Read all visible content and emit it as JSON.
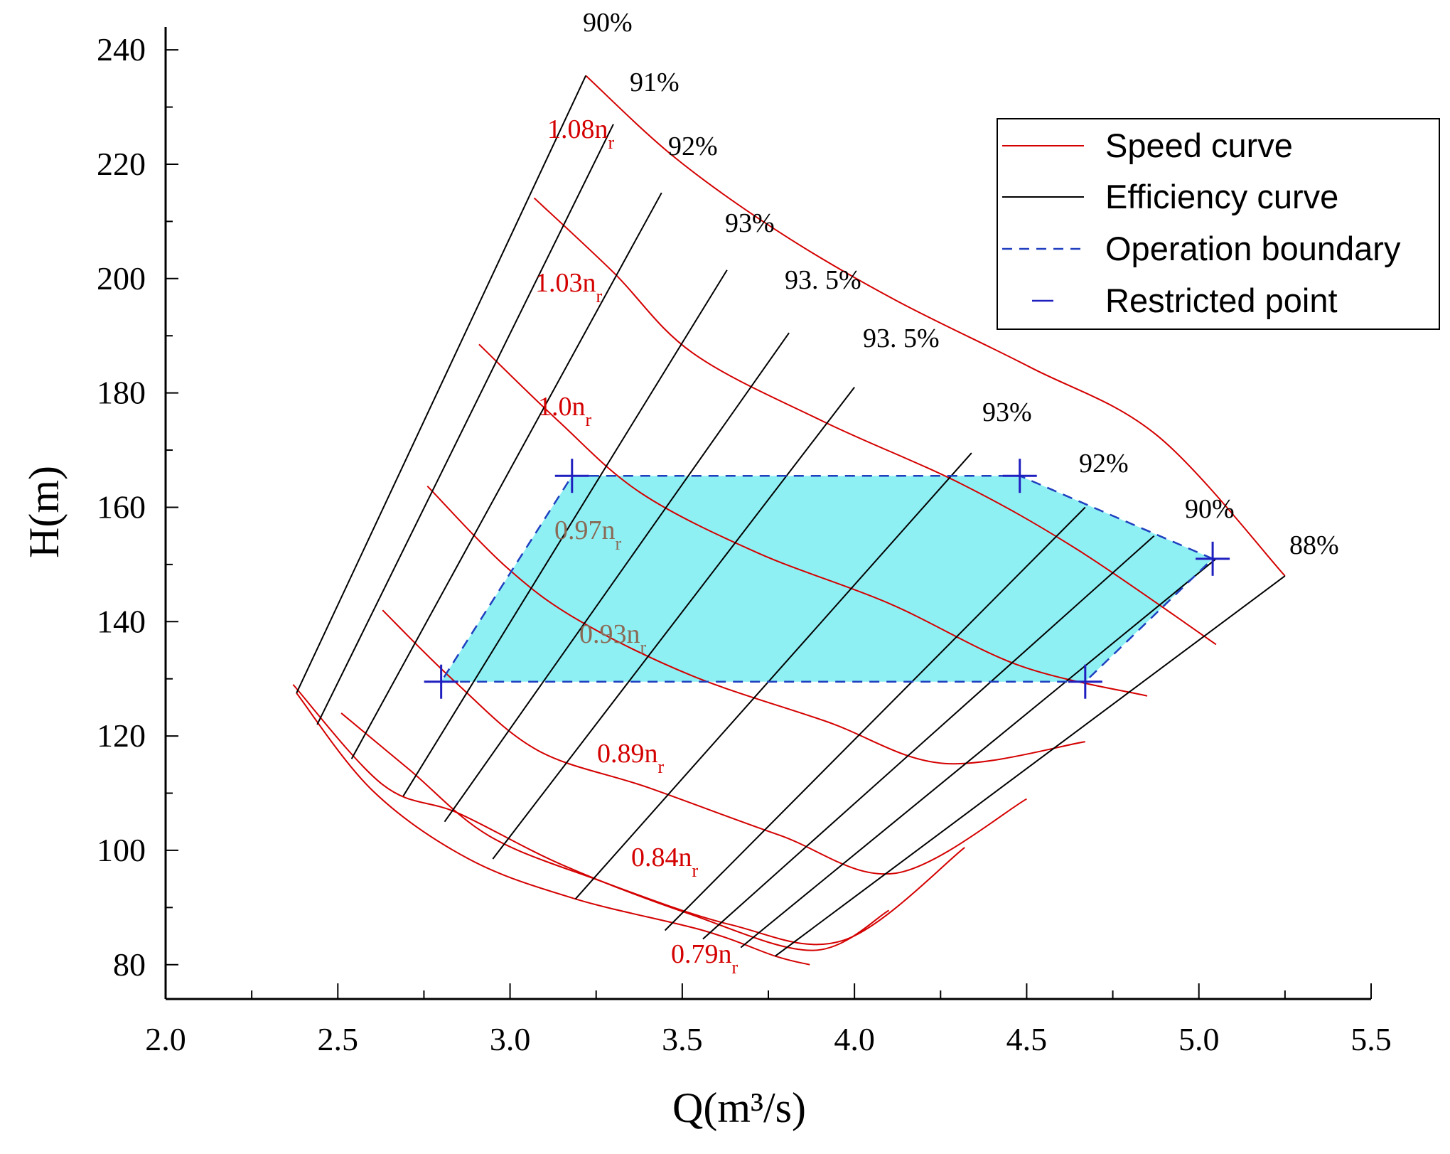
{
  "chart_data": {
    "type": "line",
    "title": "",
    "xlabel": "Q(m³/s)",
    "ylabel": "H(m)",
    "xlim": [
      2.0,
      5.5
    ],
    "ylim": [
      74,
      244
    ],
    "x_ticks": [
      "2.0",
      "2.5",
      "3.0",
      "3.5",
      "4.0",
      "4.5",
      "5.0",
      "5.5"
    ],
    "y_ticks": [
      "80",
      "100",
      "120",
      "140",
      "160",
      "180",
      "200",
      "220",
      "240"
    ],
    "legend": {
      "position": "top-right",
      "items": [
        {
          "label": "Speed curve",
          "style": "solid",
          "color": "#d40000"
        },
        {
          "label": "Efficiency curve",
          "style": "solid",
          "color": "#000000"
        },
        {
          "label": "Operation boundary",
          "style": "dashed",
          "color": "#1f3fbf"
        },
        {
          "label": "Restricted point",
          "style": "marker",
          "color": "#1f1fbf"
        }
      ]
    },
    "speed_curves": [
      {
        "label": "1.08n",
        "sub": "r",
        "ratio": 1.08,
        "points": [
          [
            3.22,
            235.5
          ],
          [
            3.48,
            221.1
          ],
          [
            3.79,
            207.8
          ],
          [
            4.12,
            196.2
          ],
          [
            4.51,
            184.5
          ],
          [
            4.88,
            172.5
          ],
          [
            5.25,
            148.0
          ]
        ]
      },
      {
        "label": "1.03n",
        "sub": "r",
        "ratio": 1.03,
        "points": [
          [
            3.07,
            214.1
          ],
          [
            3.3,
            201.1
          ],
          [
            3.53,
            187.0
          ],
          [
            3.91,
            175.0
          ],
          [
            4.31,
            164.1
          ],
          [
            4.65,
            152.5
          ],
          [
            5.05,
            136.0
          ]
        ]
      },
      {
        "label": "1.0n",
        "sub": "r",
        "ratio": 1.0,
        "points": [
          [
            2.91,
            188.5
          ],
          [
            3.14,
            175.1
          ],
          [
            3.38,
            162.5
          ],
          [
            3.72,
            152.0
          ],
          [
            4.1,
            143.2
          ],
          [
            4.48,
            132.3
          ],
          [
            4.85,
            127.0
          ]
        ]
      },
      {
        "label": "0.97n",
        "sub": "r",
        "ratio": 0.97,
        "points": [
          [
            2.76,
            163.7
          ],
          [
            2.99,
            149.5
          ],
          [
            3.2,
            140.2
          ],
          [
            3.53,
            130.5
          ],
          [
            3.92,
            122.5
          ],
          [
            4.26,
            115.2
          ],
          [
            4.67,
            119.0
          ]
        ]
      },
      {
        "label": "0.93n",
        "sub": "r",
        "ratio": 0.93,
        "points": [
          [
            2.63,
            142.0
          ],
          [
            2.84,
            129.5
          ],
          [
            3.08,
            117.5
          ],
          [
            3.4,
            111.0
          ],
          [
            3.78,
            102.7
          ],
          [
            4.12,
            96.0
          ],
          [
            4.5,
            109.0
          ]
        ]
      },
      {
        "label": "0.89n",
        "sub": "r",
        "ratio": 0.89,
        "points": [
          [
            2.51,
            124.0
          ],
          [
            2.71,
            114.0
          ],
          [
            2.94,
            102.5
          ],
          [
            3.26,
            94.7
          ],
          [
            3.64,
            87.0
          ],
          [
            3.97,
            84.3
          ],
          [
            4.32,
            100.5
          ]
        ]
      },
      {
        "label": "0.84n",
        "sub": "r",
        "ratio": 0.84,
        "points": [
          [
            2.37,
            129.0
          ],
          [
            2.63,
            111.5
          ],
          [
            2.85,
            106.5
          ],
          [
            3.15,
            97.5
          ],
          [
            3.52,
            88.9
          ],
          [
            3.88,
            82.5
          ],
          [
            4.1,
            89.5
          ]
        ]
      },
      {
        "label": "0.79n",
        "sub": "r",
        "ratio": 0.79,
        "points": [
          [
            2.38,
            127.5
          ],
          [
            2.6,
            110.5
          ],
          [
            2.88,
            98.5
          ],
          [
            3.19,
            91.5
          ],
          [
            3.56,
            86.0
          ],
          [
            3.77,
            81.5
          ],
          [
            3.87,
            80.0
          ]
        ]
      }
    ],
    "efficiency_curves": [
      {
        "label": "90%",
        "points": [
          [
            2.38,
            127.5
          ],
          [
            3.22,
            235.5
          ]
        ]
      },
      {
        "label": "91%",
        "points": [
          [
            2.44,
            122.0
          ],
          [
            3.3,
            227.0
          ]
        ]
      },
      {
        "label": "92%",
        "points": [
          [
            2.54,
            116.0
          ],
          [
            3.44,
            215.0
          ]
        ]
      },
      {
        "label": "93%",
        "points": [
          [
            2.69,
            109.5
          ],
          [
            3.63,
            201.5
          ]
        ]
      },
      {
        "label": "93. 5%",
        "points": [
          [
            2.81,
            105.0
          ],
          [
            3.81,
            190.5
          ]
        ]
      },
      {
        "label": "93. 5%",
        "points": [
          [
            2.95,
            98.5
          ],
          [
            4.0,
            181.0
          ]
        ]
      },
      {
        "label": "93%",
        "points": [
          [
            3.19,
            91.5
          ],
          [
            4.34,
            169.5
          ]
        ]
      },
      {
        "label": "92%",
        "points": [
          [
            3.45,
            86.0
          ],
          [
            4.67,
            160.0
          ]
        ]
      },
      {
        "label": "90%",
        "points": [
          [
            3.56,
            84.5
          ],
          [
            4.87,
            155.0
          ]
        ]
      },
      {
        "label": "90%",
        "points": [
          [
            3.67,
            83.0
          ],
          [
            5.05,
            151.0
          ]
        ]
      },
      {
        "label": "88%",
        "points": [
          [
            3.77,
            81.5
          ],
          [
            5.25,
            148.0
          ]
        ]
      }
    ],
    "efficiency_label_list": [
      "90%",
      "91%",
      "92%",
      "93%",
      "93. 5%",
      "93. 5%",
      "93%",
      "92%",
      "90%",
      "88%"
    ],
    "operation_boundary": [
      [
        3.18,
        165.5
      ],
      [
        4.48,
        165.5
      ],
      [
        5.04,
        151.0
      ],
      [
        4.67,
        129.5
      ],
      [
        2.8,
        129.5
      ],
      [
        3.18,
        165.5
      ]
    ],
    "restricted_points": [
      [
        3.18,
        165.5
      ],
      [
        4.48,
        165.5
      ],
      [
        5.04,
        151.0
      ],
      [
        4.67,
        129.5
      ],
      [
        2.8,
        129.5
      ]
    ],
    "colors": {
      "speed": "#d40000",
      "efficiency": "#000000",
      "boundary": "#1f3fbf",
      "restricted": "#1f1fbf",
      "fill": "#8ff0f4"
    }
  }
}
